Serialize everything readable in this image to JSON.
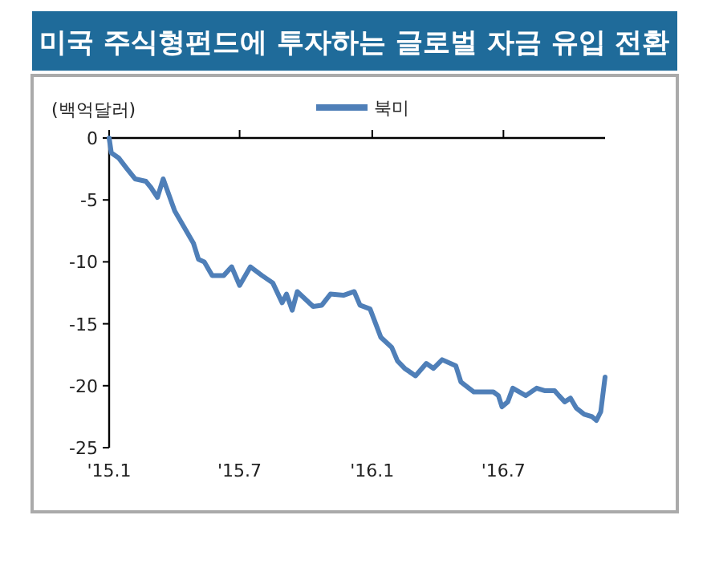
{
  "chart_data": {
    "type": "line",
    "title": "미국 주식형펀드에 투자하는 글로벌 자금 유입 전환",
    "ylabel": "(백억달러)",
    "legend": "top",
    "grid": false,
    "xlim": [
      "2015-01-01",
      "2016-11-19"
    ],
    "xticks": [
      {
        "value": "2015-01",
        "label": "'15.1"
      },
      {
        "value": "2015-07",
        "label": "'15.7"
      },
      {
        "value": "2016-01",
        "label": "'16.1"
      },
      {
        "value": "2016-07",
        "label": "'16.7"
      }
    ],
    "ylim": [
      -25,
      0
    ],
    "yticks": [
      0,
      -5,
      -10,
      -15,
      -20,
      -25
    ],
    "series": [
      {
        "name": "북미",
        "color": "#4f7fb8",
        "x": [
          "2015-01-01",
          "2015-01-04",
          "2015-01-14",
          "2015-01-26",
          "2015-02-06",
          "2015-02-21",
          "2015-02-28",
          "2015-03-09",
          "2015-03-17",
          "2015-04-02",
          "2015-04-28",
          "2015-05-05",
          "2015-05-13",
          "2015-05-24",
          "2015-06-09",
          "2015-06-20",
          "2015-07-01",
          "2015-07-16",
          "2015-08-01",
          "2015-08-16",
          "2015-08-29",
          "2015-09-04",
          "2015-09-12",
          "2015-09-19",
          "2015-09-30",
          "2015-10-11",
          "2015-10-23",
          "2015-11-04",
          "2015-11-22",
          "2015-12-07",
          "2015-12-15",
          "2015-12-29",
          "2016-01-13",
          "2016-01-28",
          "2016-02-05",
          "2016-02-15",
          "2016-03-01",
          "2016-03-16",
          "2016-03-26",
          "2016-04-07",
          "2016-04-26",
          "2016-05-03",
          "2016-05-21",
          "2016-06-17",
          "2016-06-24",
          "2016-06-29",
          "2016-07-07",
          "2016-07-14",
          "2016-08-01",
          "2016-08-16",
          "2016-08-27",
          "2016-09-10",
          "2016-09-16",
          "2016-09-24",
          "2016-10-02",
          "2016-10-10",
          "2016-10-21",
          "2016-11-01",
          "2016-11-07",
          "2016-11-13",
          "2016-11-19"
        ],
        "values": [
          0,
          -1.2,
          -1.6,
          -2.5,
          -3.3,
          -3.5,
          -4.0,
          -4.8,
          -3.3,
          -5.9,
          -8.5,
          -9.8,
          -10.0,
          -11.1,
          -11.1,
          -10.4,
          -11.9,
          -10.4,
          -11.1,
          -11.7,
          -13.3,
          -12.6,
          -13.9,
          -12.4,
          -13.0,
          -13.6,
          -13.5,
          -12.6,
          -12.7,
          -12.4,
          -13.5,
          -13.8,
          -16.1,
          -16.9,
          -18.0,
          -18.6,
          -19.2,
          -18.2,
          -18.6,
          -17.9,
          -18.4,
          -19.7,
          -20.5,
          -20.5,
          -20.8,
          -21.7,
          -21.3,
          -20.2,
          -20.8,
          -20.2,
          -20.4,
          -20.4,
          -20.8,
          -21.3,
          -21.0,
          -21.8,
          -22.3,
          -22.5,
          -22.8,
          -22.1,
          -19.3
        ]
      }
    ]
  }
}
